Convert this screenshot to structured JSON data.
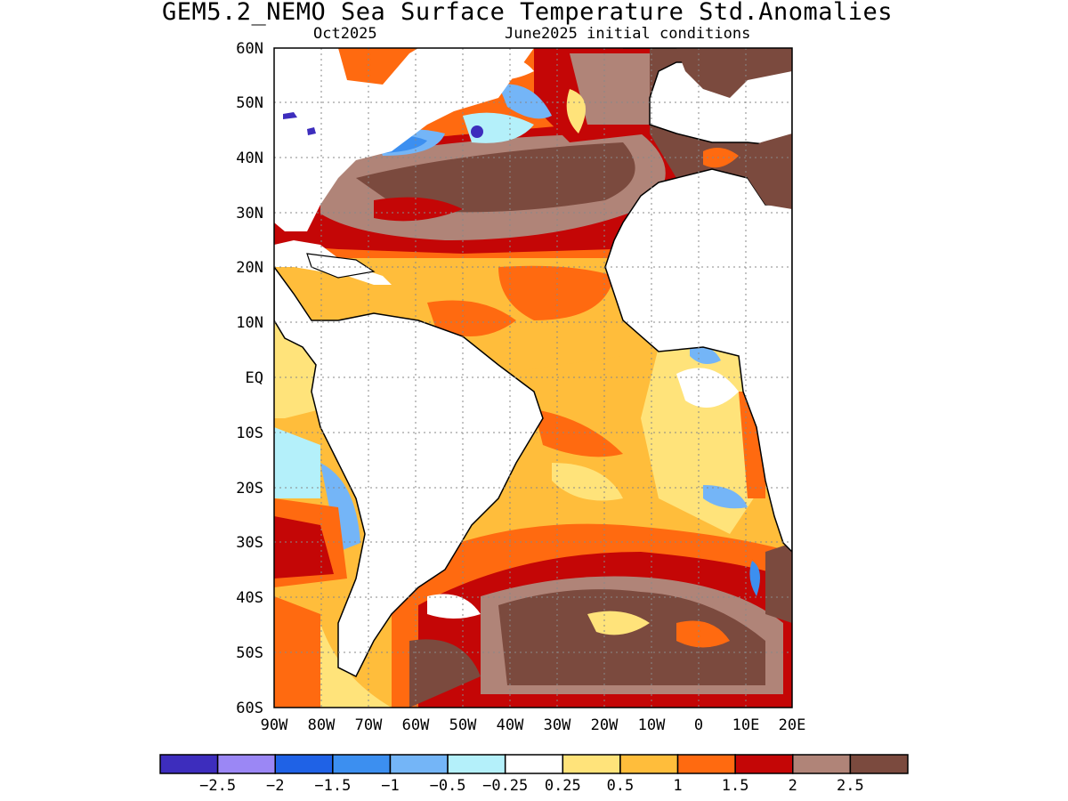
{
  "title": "GEM5.2_NEMO Sea Surface Temperature Std.Anomalies",
  "subtitle_left": "Oct2025",
  "subtitle_right": "June2025 initial conditions",
  "map": {
    "lat_labels": [
      "60N",
      "50N",
      "40N",
      "30N",
      "20N",
      "10N",
      "EQ",
      "10S",
      "20S",
      "30S",
      "40S",
      "50S",
      "60S"
    ],
    "lon_labels": [
      "90W",
      "80W",
      "70W",
      "60W",
      "50W",
      "40W",
      "30W",
      "20W",
      "10W",
      "0",
      "10E",
      "20E"
    ],
    "lat_range": [
      -60,
      60
    ],
    "lon_range": [
      -90,
      20
    ],
    "grid": "dotted",
    "land_color": "#ffffff"
  },
  "colorbar": {
    "colors": [
      "#3d2dbd",
      "#9b87f5",
      "#1f62e6",
      "#3c8ff0",
      "#74b5f7",
      "#b4f0fa",
      "#ffffff",
      "#ffe37a",
      "#ffbd3b",
      "#ff6a10",
      "#c40606",
      "#b08478",
      "#7b4a3e"
    ],
    "tick_labels": [
      "−2.5",
      "−2",
      "−1.5",
      "−1",
      "−0.5",
      "−0.25",
      "0.25",
      "0.5",
      "1",
      "1.5",
      "2",
      "2.5"
    ]
  }
}
